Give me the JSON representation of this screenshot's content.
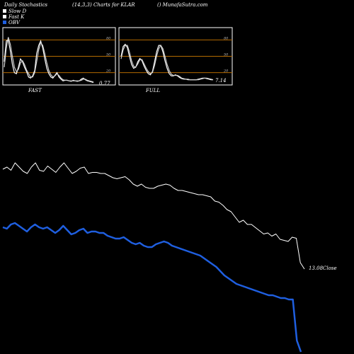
{
  "header": {
    "left": "Daily Stochastics",
    "center": "(14,3,3) Charts for KLAR",
    "right": "() MunafaSutra.com"
  },
  "legend": [
    {
      "label": "Slow D",
      "color": "#ffffff"
    },
    {
      "label": "Fast K",
      "color": "#ffffff"
    },
    {
      "label": "OBV",
      "color": "#1f5fe0"
    }
  ],
  "chart_data": [
    {
      "type": "line",
      "title": "FAST",
      "value_label": "0.77",
      "ylim": [
        0,
        100
      ],
      "yticks": [
        20,
        50,
        80
      ],
      "series": [
        {
          "values": [
            40,
            78,
            80,
            60,
            35,
            20,
            18,
            30,
            45,
            40,
            30,
            22,
            12,
            10,
            14,
            24,
            55,
            70,
            78,
            65,
            45,
            28,
            18,
            12,
            10,
            15,
            20,
            12,
            8,
            5,
            6,
            6,
            5,
            4,
            6,
            5,
            4,
            5,
            8,
            10,
            7,
            5,
            4,
            3,
            2
          ]
        },
        {
          "values": [
            30,
            65,
            85,
            72,
            50,
            30,
            22,
            26,
            38,
            42,
            35,
            25,
            18,
            12,
            12,
            20,
            40,
            62,
            75,
            70,
            55,
            38,
            24,
            16,
            12,
            14,
            18,
            15,
            10,
            7,
            6,
            6,
            5,
            5,
            5,
            5,
            5,
            5,
            6,
            8,
            8,
            6,
            5,
            4,
            3
          ]
        }
      ]
    },
    {
      "type": "line",
      "title": "FULL",
      "value_label": "7.14",
      "ylim": [
        0,
        100
      ],
      "yticks": [
        20,
        50,
        80
      ],
      "series": [
        {
          "values": [
            50,
            68,
            72,
            66,
            50,
            35,
            28,
            30,
            40,
            46,
            42,
            32,
            24,
            18,
            16,
            22,
            40,
            58,
            70,
            70,
            58,
            42,
            28,
            18,
            14,
            14,
            16,
            14,
            11,
            9,
            8,
            8,
            7,
            7,
            7,
            7,
            7,
            8,
            9,
            10,
            10,
            9,
            8,
            7,
            7
          ]
        },
        {
          "values": [
            45,
            62,
            70,
            70,
            58,
            42,
            32,
            30,
            36,
            44,
            44,
            36,
            28,
            22,
            18,
            20,
            33,
            50,
            64,
            70,
            64,
            50,
            35,
            24,
            17,
            15,
            15,
            15,
            13,
            10,
            9,
            8,
            8,
            7,
            7,
            7,
            7,
            7,
            8,
            9,
            10,
            10,
            9,
            8,
            7
          ]
        }
      ]
    },
    {
      "type": "line",
      "end_label": "13.08Close",
      "ylim": [
        0,
        100
      ],
      "series": [
        {
          "color": "#ffffff",
          "values": [
            94,
            96,
            93,
            100,
            96,
            92,
            90,
            96,
            100,
            93,
            92,
            97,
            94,
            91,
            96,
            100,
            95,
            90,
            92,
            95,
            96,
            90,
            91,
            91,
            90,
            90,
            88,
            86,
            85,
            86,
            87,
            84,
            80,
            78,
            80,
            77,
            76,
            76,
            78,
            79,
            80,
            79,
            76,
            74,
            74,
            73,
            72,
            71,
            70,
            70,
            69,
            68,
            64,
            63,
            60,
            56,
            54,
            49,
            44,
            46,
            42,
            42,
            39,
            36,
            33,
            34,
            31,
            33,
            28,
            27,
            26,
            30,
            29,
            6,
            0
          ]
        },
        {
          "color": "#1f5fe0",
          "values": [
            88,
            87,
            90,
            91,
            89,
            87,
            85,
            88,
            90,
            88,
            87,
            88,
            86,
            84,
            86,
            89,
            86,
            83,
            84,
            86,
            87,
            84,
            85,
            85,
            84,
            84,
            82,
            81,
            80,
            80,
            81,
            79,
            77,
            76,
            77,
            75,
            74,
            74,
            76,
            77,
            78,
            77,
            75,
            74,
            73,
            72,
            71,
            70,
            69,
            68,
            66,
            64,
            62,
            60,
            57,
            54,
            52,
            50,
            48,
            47,
            46,
            45,
            44,
            43,
            42,
            41,
            40,
            40,
            39,
            38,
            38,
            37,
            37,
            8,
            0
          ]
        }
      ]
    }
  ]
}
